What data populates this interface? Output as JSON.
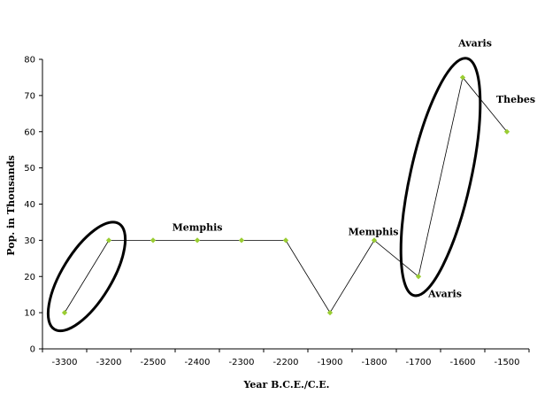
{
  "chart_data": {
    "type": "line",
    "title": "",
    "xlabel": "Year B.C.E./C.E.",
    "ylabel": "Pop. in Thousands",
    "ylim": [
      0,
      80
    ],
    "yticks": [
      0,
      10,
      20,
      30,
      40,
      50,
      60,
      70,
      80
    ],
    "grid": false,
    "categories": [
      "-3300",
      "-3200",
      "-2500",
      "-2400",
      "-2300",
      "-2200",
      "-1900",
      "-1800",
      "-1700",
      "-1600",
      "-1500"
    ],
    "series": [
      {
        "values": [
          10,
          30,
          30,
          30,
          30,
          30,
          10,
          30,
          20,
          75,
          60
        ]
      }
    ],
    "annotations": [
      {
        "text": "Memphis",
        "category": "-2400",
        "value": 30
      },
      {
        "text": "Memphis",
        "category": "-1800",
        "value": 30
      },
      {
        "text": "Avaris",
        "category": "-1700",
        "value": 20
      },
      {
        "text": "Avaris",
        "category": "-1600",
        "value": 75
      },
      {
        "text": "Thebes",
        "category": "-1500",
        "value": 60
      }
    ],
    "highlights": [
      {
        "shape": "ellipse",
        "from_category": "-3300",
        "to_category": "-3200"
      },
      {
        "shape": "ellipse",
        "from_category": "-1700",
        "to_category": "-1600"
      }
    ],
    "colors": {
      "line": "#000000",
      "marker": "#9acd32"
    }
  }
}
